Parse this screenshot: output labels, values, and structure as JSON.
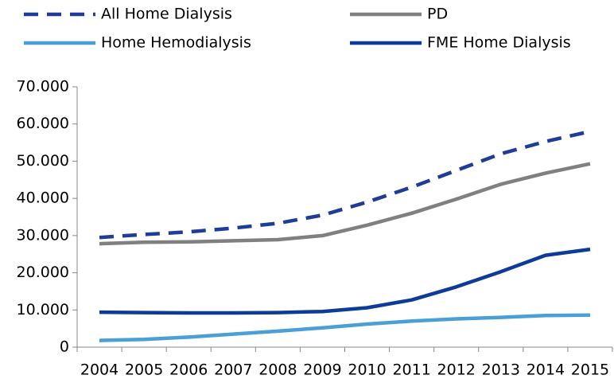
{
  "chart_data": {
    "type": "line",
    "categories": [
      "2004",
      "2005",
      "2006",
      "2007",
      "2008",
      "2009",
      "2010",
      "2011",
      "2012",
      "2013",
      "2014",
      "2015"
    ],
    "series": [
      {
        "name": "All Home Dialysis",
        "color": "#1f3c99",
        "dashed": true,
        "values": [
          29500,
          30300,
          31000,
          32000,
          33300,
          35500,
          39000,
          43000,
          47500,
          52000,
          55300,
          58000
        ]
      },
      {
        "name": "PD",
        "color": "#808080",
        "dashed": false,
        "values": [
          27800,
          28200,
          28300,
          28600,
          28900,
          30000,
          32800,
          36000,
          39800,
          43800,
          46800,
          49300
        ]
      },
      {
        "name": "Home Hemodialysis",
        "color": "#4a9fd8",
        "dashed": false,
        "values": [
          1800,
          2100,
          2700,
          3500,
          4300,
          5200,
          6200,
          7000,
          7600,
          8000,
          8500,
          8600
        ]
      },
      {
        "name": "FME Home Dialysis",
        "color": "#0d3b98",
        "dashed": false,
        "values": [
          9400,
          9300,
          9200,
          9200,
          9300,
          9600,
          10600,
          12700,
          16200,
          20300,
          24700,
          26300
        ]
      }
    ],
    "ylim": [
      0,
      70000
    ],
    "yticks": [
      0,
      {
        "value": 10000,
        "label": "10.000"
      },
      {
        "value": 20000,
        "label": "20.000"
      },
      {
        "value": 30000,
        "label": "30.000"
      },
      {
        "value": 40000,
        "label": "40.000"
      },
      {
        "value": 50000,
        "label": "50.000"
      },
      {
        "value": 60000,
        "label": "60.000"
      },
      {
        "value": 70000,
        "label": "70.000"
      }
    ],
    "grid": false,
    "legend": "top"
  }
}
